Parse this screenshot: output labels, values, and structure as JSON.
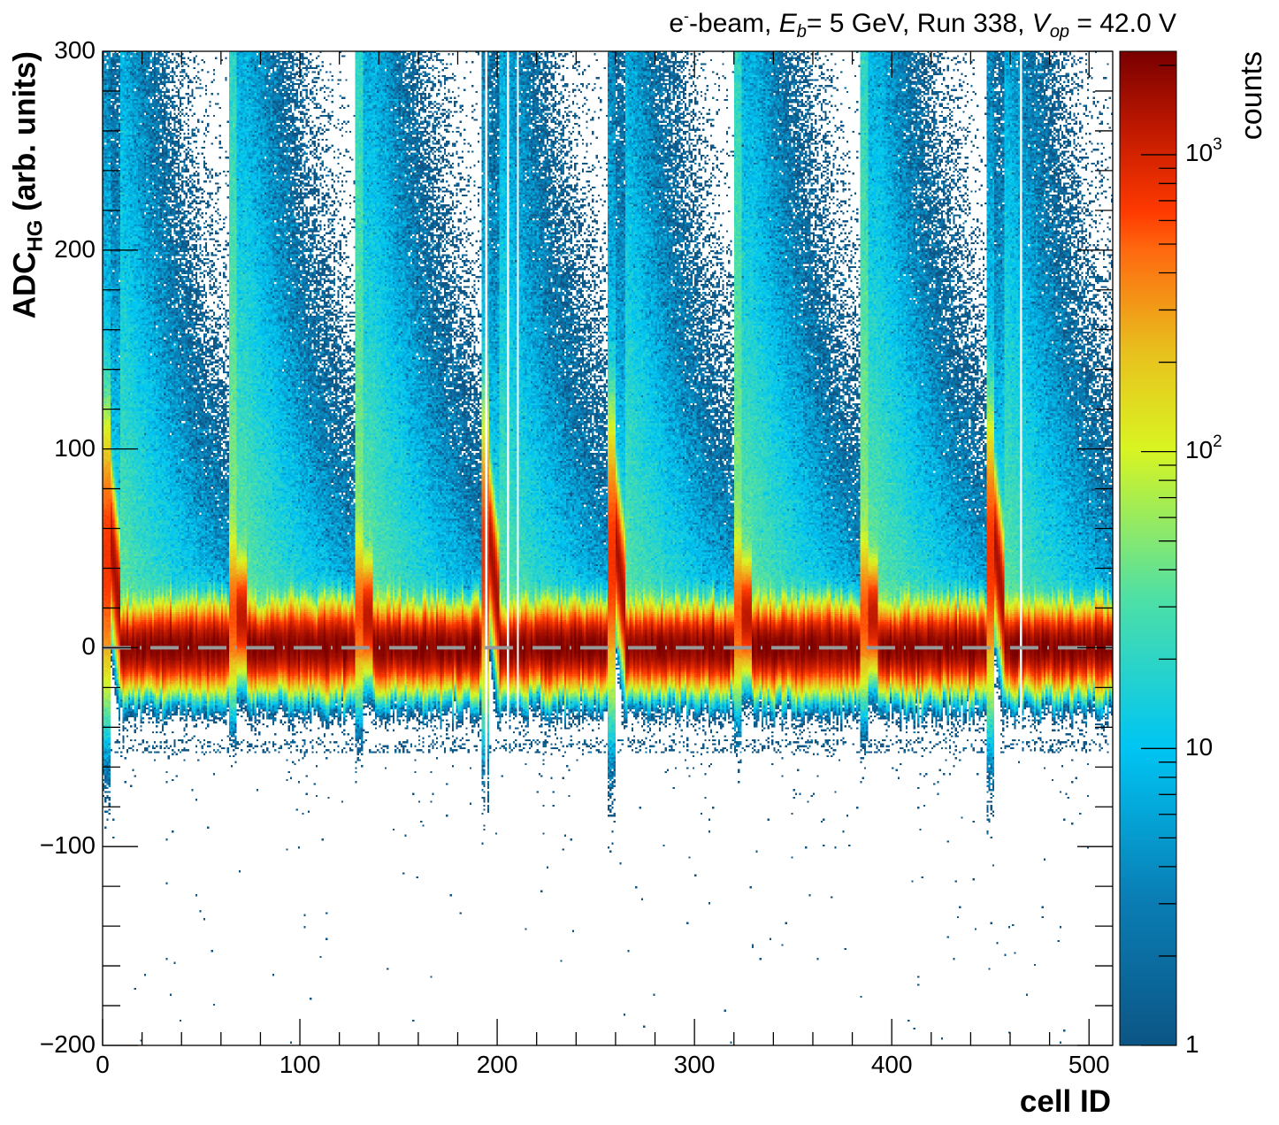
{
  "title": {
    "prefix": "e",
    "sup": "-",
    "beam": "-beam, ",
    "eb": "E",
    "eb_sub": "b",
    "eb_val": "= 5 GeV, Run 338, ",
    "vop": "V",
    "vop_sub": "op",
    "vop_val": " = 42.0 V"
  },
  "chart_data": {
    "type": "heatmap",
    "xlabel": "cell ID",
    "ylabel": {
      "main": "ADC",
      "sub": "HG",
      "rest": " (arb. units)"
    },
    "zlabel": "counts",
    "xlim": [
      0,
      512
    ],
    "ylim": [
      -200,
      300
    ],
    "zlim": [
      1,
      2230
    ],
    "zscale": "log",
    "x_ticks": [
      "0",
      "100",
      "200",
      "300",
      "400",
      "500"
    ],
    "x_tick_values": [
      0,
      100,
      200,
      300,
      400,
      500
    ],
    "y_ticks": [
      "300",
      "200",
      "100",
      "0",
      "−100",
      "−200"
    ],
    "y_tick_values": [
      300,
      200,
      100,
      0,
      -100,
      -200
    ],
    "z_ticks": [
      {
        "value": 1,
        "base": "1",
        "exp": ""
      },
      {
        "value": 10,
        "base": "10",
        "exp": ""
      },
      {
        "value": 100,
        "base": "10",
        "exp": "2"
      },
      {
        "value": 1000,
        "base": "10",
        "exp": "3"
      }
    ],
    "reference_line": {
      "y": 0,
      "color": "#999999",
      "style": "dash-dot"
    },
    "bins": {
      "x": 512,
      "y": 500
    },
    "model": {
      "block_size": 64,
      "blocks": [
        {
          "start": 0,
          "type": "narrow"
        },
        {
          "start": 64,
          "type": "wide"
        },
        {
          "start": 128,
          "type": "wide"
        },
        {
          "start": 192,
          "type": "narrow"
        },
        {
          "start": 256,
          "type": "narrow"
        },
        {
          "start": 320,
          "type": "wide"
        },
        {
          "start": 384,
          "type": "wide"
        },
        {
          "start": 448,
          "type": "narrow"
        }
      ],
      "empty_cells": [
        194,
        205,
        210,
        465
      ],
      "pedestal_mean": 0,
      "pedestal_sigma": 8.5,
      "pedestal_peak_counts": 2000
    },
    "palette": [
      "#0d5686",
      "#0a7fb6",
      "#00c6f4",
      "#4fe0a6",
      "#d9f522",
      "#e9c01e",
      "#ff6a10",
      "#ff3a00",
      "#c21a00",
      "#7a0000"
    ]
  }
}
